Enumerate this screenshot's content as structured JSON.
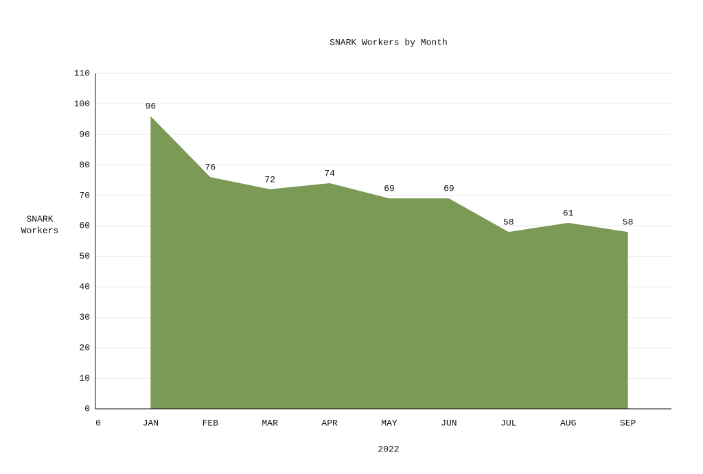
{
  "chart_data": {
    "type": "area",
    "title": "SNARK Workers by Month",
    "x_label": "2022",
    "y_label": "SNARK Workers",
    "categories": [
      "0",
      "JAN",
      "FEB",
      "MAR",
      "APR",
      "MAY",
      "JUN",
      "JUL",
      "AUG",
      "SEP"
    ],
    "values": [
      null,
      96,
      76,
      72,
      74,
      69,
      69,
      58,
      61,
      58
    ],
    "color": "#7a9a56",
    "ylim": [
      0,
      110
    ],
    "yticks": [
      0,
      10,
      20,
      30,
      40,
      50,
      60,
      70,
      80,
      90,
      100,
      110
    ],
    "grid": true
  }
}
